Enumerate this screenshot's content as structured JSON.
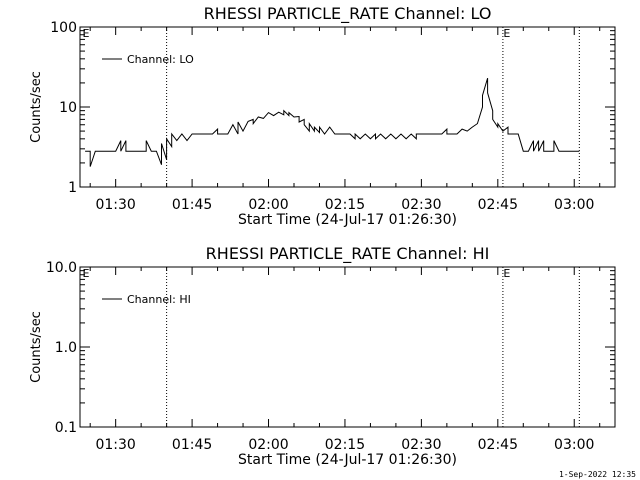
{
  "footer": {
    "timestamp": "1-Sep-2022 12:35"
  },
  "chart_data": [
    {
      "type": "line",
      "title": "RHESSI PARTICLE_RATE Channel: LO",
      "xlabel": "Start Time (24-Jul-17 01:26:30)",
      "ylabel": "Counts/sec",
      "yscale": "log",
      "ylim": [
        1,
        100
      ],
      "yticks": [
        {
          "value": 1,
          "label": "1"
        },
        {
          "value": 10,
          "label": "10"
        },
        {
          "value": 100,
          "label": "100"
        }
      ],
      "xlim": [
        "01:23",
        "03:08"
      ],
      "xticks": [
        "01:30",
        "01:45",
        "02:00",
        "02:15",
        "02:30",
        "02:45",
        "03:00"
      ],
      "grid": false,
      "legend": {
        "position": "top-left",
        "entries": [
          "Channel: LO"
        ]
      },
      "event_markers": [
        {
          "time": "01:40",
          "label": ""
        },
        {
          "time": "02:46",
          "label": "E"
        },
        {
          "time": "03:01",
          "label": ""
        }
      ],
      "corner_label": "E",
      "series": [
        {
          "name": "Channel: LO",
          "points": [
            [
              "01:24",
              2.8
            ],
            [
              "01:25",
              2.8
            ],
            [
              "01:25",
              1.8
            ],
            [
              "01:26",
              2.8
            ],
            [
              "01:30",
              2.8
            ],
            [
              "01:31",
              3.8
            ],
            [
              "01:31",
              2.8
            ],
            [
              "01:32",
              3.8
            ],
            [
              "01:32",
              2.8
            ],
            [
              "01:36",
              2.8
            ],
            [
              "01:36",
              3.8
            ],
            [
              "01:37",
              2.8
            ],
            [
              "01:38",
              2.8
            ],
            [
              "01:39",
              1.9
            ],
            [
              "01:39",
              3.5
            ],
            [
              "01:40",
              2.2
            ],
            [
              "01:40",
              4.0
            ],
            [
              "01:41",
              3.2
            ],
            [
              "01:41",
              4.6
            ],
            [
              "01:42",
              3.8
            ],
            [
              "01:43",
              4.6
            ],
            [
              "01:44",
              3.8
            ],
            [
              "01:45",
              4.6
            ],
            [
              "01:49",
              4.6
            ],
            [
              "01:50",
              5.3
            ],
            [
              "01:50",
              4.6
            ],
            [
              "01:52",
              4.6
            ],
            [
              "01:53",
              6.0
            ],
            [
              "01:54",
              4.6
            ],
            [
              "01:54",
              6.5
            ],
            [
              "01:55",
              5.0
            ],
            [
              "01:56",
              6.6
            ],
            [
              "01:57",
              7.0
            ],
            [
              "01:57",
              6.2
            ],
            [
              "01:58",
              7.5
            ],
            [
              "01:59",
              7.2
            ],
            [
              "02:00",
              8.5
            ],
            [
              "02:01",
              7.8
            ],
            [
              "02:02",
              8.6
            ],
            [
              "02:03",
              8.0
            ],
            [
              "02:03",
              9.0
            ],
            [
              "02:04",
              7.8
            ],
            [
              "02:04",
              8.5
            ],
            [
              "02:05",
              7.5
            ],
            [
              "02:06",
              7.6
            ],
            [
              "02:06",
              6.5
            ],
            [
              "02:07",
              7.0
            ],
            [
              "02:07",
              6.0
            ],
            [
              "02:08",
              5.0
            ],
            [
              "02:08",
              6.2
            ],
            [
              "02:09",
              5.0
            ],
            [
              "02:09",
              5.6
            ],
            [
              "02:10",
              4.8
            ],
            [
              "02:10",
              5.6
            ],
            [
              "02:11",
              4.6
            ],
            [
              "02:12",
              5.6
            ],
            [
              "02:13",
              4.6
            ],
            [
              "02:16",
              4.6
            ],
            [
              "02:17",
              4.0
            ],
            [
              "02:17",
              4.6
            ],
            [
              "02:18",
              4.0
            ],
            [
              "02:19",
              4.6
            ],
            [
              "02:20",
              4.0
            ],
            [
              "02:21",
              4.6
            ],
            [
              "02:21",
              4.0
            ],
            [
              "02:22",
              4.6
            ],
            [
              "02:23",
              4.0
            ],
            [
              "02:24",
              4.6
            ],
            [
              "02:25",
              4.0
            ],
            [
              "02:26",
              4.6
            ],
            [
              "02:27",
              4.0
            ],
            [
              "02:28",
              4.6
            ],
            [
              "02:29",
              4.0
            ],
            [
              "02:29",
              4.6
            ],
            [
              "02:34",
              4.6
            ],
            [
              "02:35",
              5.3
            ],
            [
              "02:35",
              4.6
            ],
            [
              "02:37",
              4.6
            ],
            [
              "02:38",
              5.3
            ],
            [
              "02:39",
              5.0
            ],
            [
              "02:40",
              5.6
            ],
            [
              "02:41",
              6.2
            ],
            [
              "02:42",
              10.0
            ],
            [
              "02:42",
              14.0
            ],
            [
              "02:43",
              23.0
            ],
            [
              "02:43",
              15.0
            ],
            [
              "02:44",
              9.0
            ],
            [
              "02:44",
              7.0
            ],
            [
              "02:45",
              5.6
            ],
            [
              "02:45",
              6.2
            ],
            [
              "02:46",
              5.0
            ],
            [
              "02:47",
              5.6
            ],
            [
              "02:47",
              4.6
            ],
            [
              "02:49",
              4.6
            ],
            [
              "02:50",
              2.8
            ],
            [
              "02:51",
              2.8
            ],
            [
              "02:52",
              3.8
            ],
            [
              "02:52",
              2.8
            ],
            [
              "02:53",
              3.8
            ],
            [
              "02:53",
              2.8
            ],
            [
              "02:54",
              3.8
            ],
            [
              "02:54",
              2.8
            ],
            [
              "02:56",
              2.8
            ],
            [
              "02:56",
              3.8
            ],
            [
              "02:57",
              2.8
            ],
            [
              "03:00",
              2.8
            ],
            [
              "03:01",
              2.8
            ]
          ]
        }
      ]
    },
    {
      "type": "line",
      "title": "RHESSI PARTICLE_RATE Channel: HI",
      "xlabel": "Start Time (24-Jul-17 01:26:30)",
      "ylabel": "Counts/sec",
      "yscale": "log",
      "ylim": [
        0.1,
        10
      ],
      "yticks": [
        {
          "value": 0.1,
          "label": "0.1"
        },
        {
          "value": 1,
          "label": "1.0"
        },
        {
          "value": 10,
          "label": "10.0"
        }
      ],
      "xlim": [
        "01:23",
        "03:08"
      ],
      "xticks": [
        "01:30",
        "01:45",
        "02:00",
        "02:15",
        "02:30",
        "02:45",
        "03:00"
      ],
      "grid": false,
      "legend": {
        "position": "top-left",
        "entries": [
          "Channel: HI"
        ]
      },
      "event_markers": [
        {
          "time": "01:40",
          "label": ""
        },
        {
          "time": "02:46",
          "label": "E"
        },
        {
          "time": "03:01",
          "label": ""
        }
      ],
      "corner_label": "E",
      "series": [
        {
          "name": "Channel: HI",
          "points": []
        }
      ]
    }
  ]
}
